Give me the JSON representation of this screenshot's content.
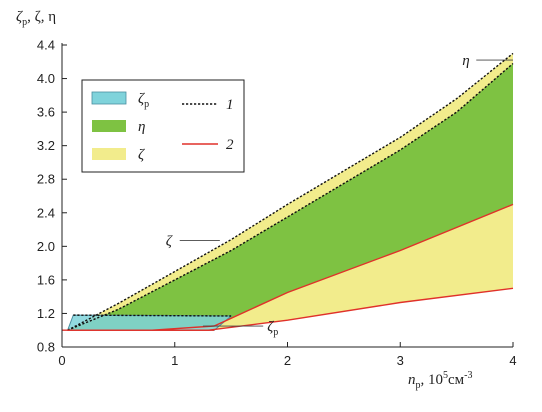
{
  "chart_data": {
    "type": "area",
    "ylabel": "ζp, ζ, η",
    "xlabel": {
      "var": "n",
      "sub": "p",
      "rest": ", 10",
      "sup_exp": "5",
      "unit": "см",
      "unit_exp": "-3"
    },
    "xlim": [
      0,
      4
    ],
    "ylim": [
      0.8,
      4.4
    ],
    "x_ticks": [
      "0",
      "1",
      "2",
      "3",
      "4"
    ],
    "y_ticks": [
      "0.8",
      "1.2",
      "1.6",
      "2.0",
      "2.4",
      "2.8",
      "3.2",
      "3.6",
      "4.0",
      "4.4"
    ],
    "grid": false,
    "legend_position": "top-left",
    "legend": {
      "fills": [
        {
          "key": "zeta_p",
          "label": "ζ",
          "sub": "p",
          "color": "#7fd3db"
        },
        {
          "key": "eta",
          "label": "η",
          "sub": "",
          "color": "#7ec242"
        },
        {
          "key": "zeta",
          "label": "ζ",
          "sub": "",
          "color": "#f2ec8c"
        }
      ],
      "lines": [
        {
          "key": "curve1",
          "label": "1",
          "style": "dotted",
          "color": "#111111"
        },
        {
          "key": "curve2",
          "label": "2",
          "style": "solid",
          "color": "#e0312a"
        }
      ]
    },
    "series": [
      {
        "name": "ζp",
        "band_lower": [
          [
            0.05,
            1.0
          ],
          [
            1.35,
            1.0
          ]
        ],
        "band_upper": [
          [
            0.1,
            1.18
          ],
          [
            1.5,
            1.17
          ]
        ]
      },
      {
        "name": "η",
        "curve1": [
          [
            0.05,
            1.0
          ],
          [
            0.5,
            1.25
          ],
          [
            1.0,
            1.6
          ],
          [
            1.5,
            1.95
          ],
          [
            2.0,
            2.35
          ],
          [
            2.5,
            2.75
          ],
          [
            3.0,
            3.15
          ],
          [
            3.5,
            3.6
          ],
          [
            4.0,
            4.18
          ]
        ],
        "curve2": [
          [
            0.8,
            1.0
          ],
          [
            1.35,
            1.05
          ],
          [
            2.0,
            1.45
          ],
          [
            3.0,
            1.95
          ],
          [
            4.0,
            2.5
          ]
        ]
      },
      {
        "name": "ζ",
        "curve1": [
          [
            0.05,
            1.0
          ],
          [
            0.5,
            1.32
          ],
          [
            1.0,
            1.7
          ],
          [
            1.5,
            2.08
          ],
          [
            2.0,
            2.5
          ],
          [
            2.5,
            2.9
          ],
          [
            3.0,
            3.3
          ],
          [
            3.5,
            3.76
          ],
          [
            4.0,
            4.3
          ]
        ],
        "curve2": [
          [
            0.0,
            1.0
          ],
          [
            1.3,
            1.0
          ],
          [
            2.0,
            1.12
          ],
          [
            3.0,
            1.33
          ],
          [
            4.0,
            1.5
          ]
        ]
      }
    ],
    "annotations": [
      {
        "key": "eta",
        "text": "η",
        "sub": "",
        "x": 3.55,
        "y": 4.21,
        "target_x": 4.0,
        "target_y": 4.22
      },
      {
        "key": "zeta",
        "text": "ζ",
        "sub": "",
        "x": 0.92,
        "y": 1.98,
        "target_x": 1.4,
        "target_y": 2.07
      },
      {
        "key": "zeta_p",
        "text": "ζ",
        "sub": "p",
        "x": 1.82,
        "y": 1.02,
        "target_x": 1.25,
        "target_y": 1.05
      }
    ]
  }
}
